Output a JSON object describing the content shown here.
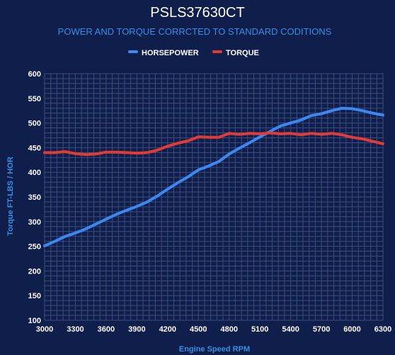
{
  "chart_data": {
    "type": "line",
    "title": "PSLS37630CT",
    "subtitle": "POWER AND TORQUE CORRCTED TO STANDARD CODITIONS",
    "xlabel": "Engine Speed RPM",
    "ylabel": "Torque FT-LBS / HOR",
    "xlim": [
      3000,
      6300
    ],
    "ylim": [
      100,
      600
    ],
    "x_ticks": [
      3000,
      3300,
      3600,
      3900,
      4200,
      4500,
      4800,
      5100,
      5400,
      5700,
      6000,
      6300
    ],
    "y_ticks": [
      100,
      150,
      200,
      250,
      300,
      350,
      400,
      450,
      500,
      550,
      600
    ],
    "legend_position": "top-center",
    "grid": true,
    "colors": {
      "background": "#0f1e4a",
      "grid": "#3b4d80",
      "horsepower": "#3d87f0",
      "torque": "#e03b36"
    },
    "x": [
      3000,
      3100,
      3200,
      3300,
      3400,
      3500,
      3600,
      3700,
      3800,
      3900,
      4000,
      4100,
      4200,
      4300,
      4400,
      4500,
      4600,
      4700,
      4800,
      4900,
      5000,
      5100,
      5200,
      5300,
      5400,
      5500,
      5600,
      5700,
      5800,
      5900,
      6000,
      6100,
      6200,
      6300
    ],
    "series": [
      {
        "name": "HORSEPOWER",
        "color": "#3d87f0",
        "values": [
          251,
          260,
          270,
          277,
          285,
          295,
          305,
          315,
          323,
          331,
          340,
          352,
          366,
          379,
          391,
          405,
          413,
          422,
          437,
          449,
          460,
          472,
          483,
          494,
          500,
          506,
          515,
          519,
          525,
          530,
          529,
          525,
          520,
          516
        ]
      },
      {
        "name": "TORQUE",
        "color": "#e03b36",
        "values": [
          440,
          440,
          442,
          438,
          436,
          437,
          441,
          441,
          440,
          439,
          440,
          445,
          453,
          459,
          464,
          472,
          471,
          471,
          479,
          477,
          479,
          478,
          480,
          478,
          479,
          476,
          479,
          477,
          479,
          476,
          471,
          468,
          463,
          458
        ]
      }
    ]
  }
}
